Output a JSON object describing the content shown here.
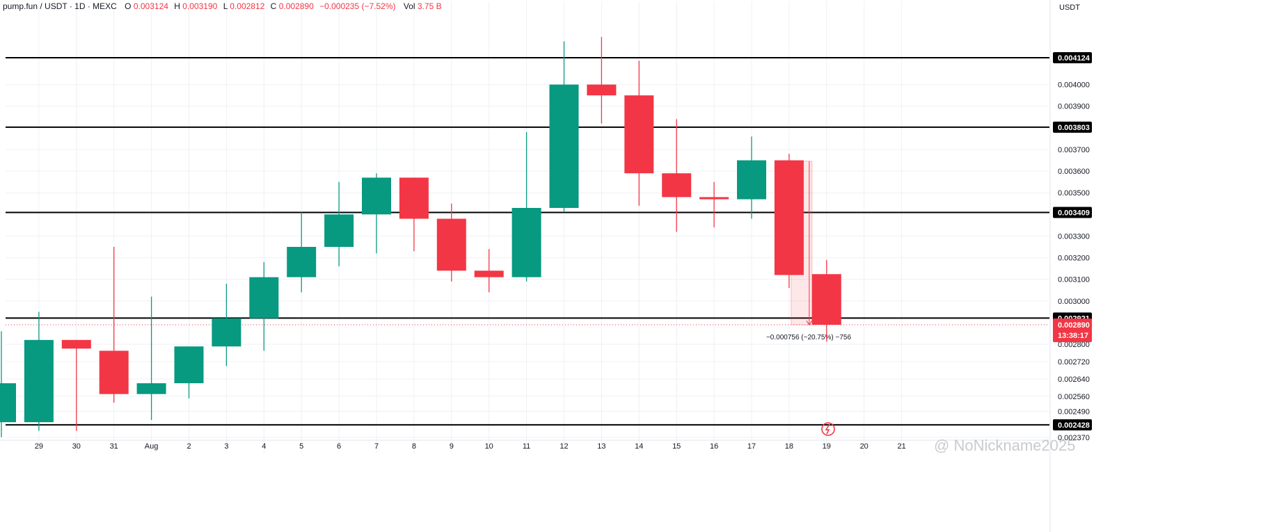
{
  "header": {
    "symbol": "pump.fun / USDT · 1D · MEXC",
    "open_label": "O",
    "open": "0.003124",
    "high_label": "H",
    "high": "0.003190",
    "low_label": "L",
    "low": "0.002812",
    "close_label": "C",
    "close": "0.002890",
    "change": "−0.000235 (−7.52%)",
    "vol_label": "Vol",
    "vol": "3.75 B"
  },
  "currency_label": "USDT",
  "countdown": "13:38:17",
  "measure_label": "−0.000756 (−20.75%) −756",
  "watermark": "@ NoNickname2025",
  "colors": {
    "up": "#089981",
    "down": "#f23645",
    "level": "#000000",
    "grid": "#eef0f3"
  },
  "chart_data": {
    "type": "candlestick",
    "title": "",
    "xlabel": "",
    "ylabel": "",
    "ylim": [
      0.00236,
      0.00432
    ],
    "y_ticks": [
      "0.004000",
      "0.003900",
      "0.003700",
      "0.003600",
      "0.003500",
      "0.003300",
      "0.003200",
      "0.003100",
      "0.003000",
      "0.002800",
      "0.002720",
      "0.002640",
      "0.002560",
      "0.002490",
      "0.002370"
    ],
    "x_labels": [
      "29",
      "30",
      "31",
      "Aug",
      "2",
      "3",
      "4",
      "5",
      "6",
      "7",
      "8",
      "9",
      "10",
      "11",
      "12",
      "13",
      "14",
      "15",
      "16",
      "17",
      "18",
      "19",
      "20",
      "21"
    ],
    "candles": [
      {
        "date": "28",
        "open": 0.00244,
        "high": 0.00286,
        "low": 0.00237,
        "close": 0.00262
      },
      {
        "date": "29",
        "open": 0.00244,
        "high": 0.00295,
        "low": 0.0024,
        "close": 0.00282
      },
      {
        "date": "30",
        "open": 0.00282,
        "high": 0.00282,
        "low": 0.0024,
        "close": 0.00278
      },
      {
        "date": "31",
        "open": 0.00277,
        "high": 0.00325,
        "low": 0.00253,
        "close": 0.00257
      },
      {
        "date": "Aug",
        "open": 0.00257,
        "high": 0.00302,
        "low": 0.00245,
        "close": 0.00262
      },
      {
        "date": "2",
        "open": 0.00262,
        "high": 0.00278,
        "low": 0.00255,
        "close": 0.00279
      },
      {
        "date": "3",
        "open": 0.00279,
        "high": 0.00308,
        "low": 0.0027,
        "close": 0.00292
      },
      {
        "date": "4",
        "open": 0.00292,
        "high": 0.00318,
        "low": 0.00277,
        "close": 0.00311
      },
      {
        "date": "5",
        "open": 0.00311,
        "high": 0.00341,
        "low": 0.00304,
        "close": 0.00325
      },
      {
        "date": "6",
        "open": 0.00325,
        "high": 0.00355,
        "low": 0.00316,
        "close": 0.0034
      },
      {
        "date": "7",
        "open": 0.0034,
        "high": 0.00359,
        "low": 0.00322,
        "close": 0.00357
      },
      {
        "date": "8",
        "open": 0.00357,
        "high": 0.00357,
        "low": 0.00323,
        "close": 0.00338
      },
      {
        "date": "9",
        "open": 0.00338,
        "high": 0.00345,
        "low": 0.00309,
        "close": 0.00314
      },
      {
        "date": "10",
        "open": 0.00314,
        "high": 0.00324,
        "low": 0.00304,
        "close": 0.00311
      },
      {
        "date": "11",
        "open": 0.00311,
        "high": 0.00378,
        "low": 0.00309,
        "close": 0.00343
      },
      {
        "date": "12",
        "open": 0.00343,
        "high": 0.0042,
        "low": 0.00341,
        "close": 0.004
      },
      {
        "date": "13",
        "open": 0.004,
        "high": 0.00422,
        "low": 0.00382,
        "close": 0.00395
      },
      {
        "date": "14",
        "open": 0.00395,
        "high": 0.00411,
        "low": 0.00344,
        "close": 0.00359
      },
      {
        "date": "15",
        "open": 0.00359,
        "high": 0.00384,
        "low": 0.00332,
        "close": 0.00348
      },
      {
        "date": "16",
        "open": 0.00348,
        "high": 0.00355,
        "low": 0.00334,
        "close": 0.00347
      },
      {
        "date": "17",
        "open": 0.00347,
        "high": 0.00376,
        "low": 0.00338,
        "close": 0.00365
      },
      {
        "date": "18",
        "open": 0.00365,
        "high": 0.00368,
        "low": 0.00306,
        "close": 0.00312
      },
      {
        "date": "19",
        "open": 0.003124,
        "high": 0.00319,
        "low": 0.002812,
        "close": 0.00289
      }
    ],
    "levels": [
      0.004124,
      0.003803,
      0.003409,
      0.002921,
      0.002428
    ],
    "level_labels": [
      "0.004124",
      "0.003803",
      "0.003409",
      "0.002921",
      "0.002428"
    ],
    "current_price": 0.00289,
    "current_price_label": "0.002890",
    "measure": {
      "from": 0.003646,
      "to": 0.00289,
      "start_date": "18",
      "end_date": "19"
    }
  }
}
